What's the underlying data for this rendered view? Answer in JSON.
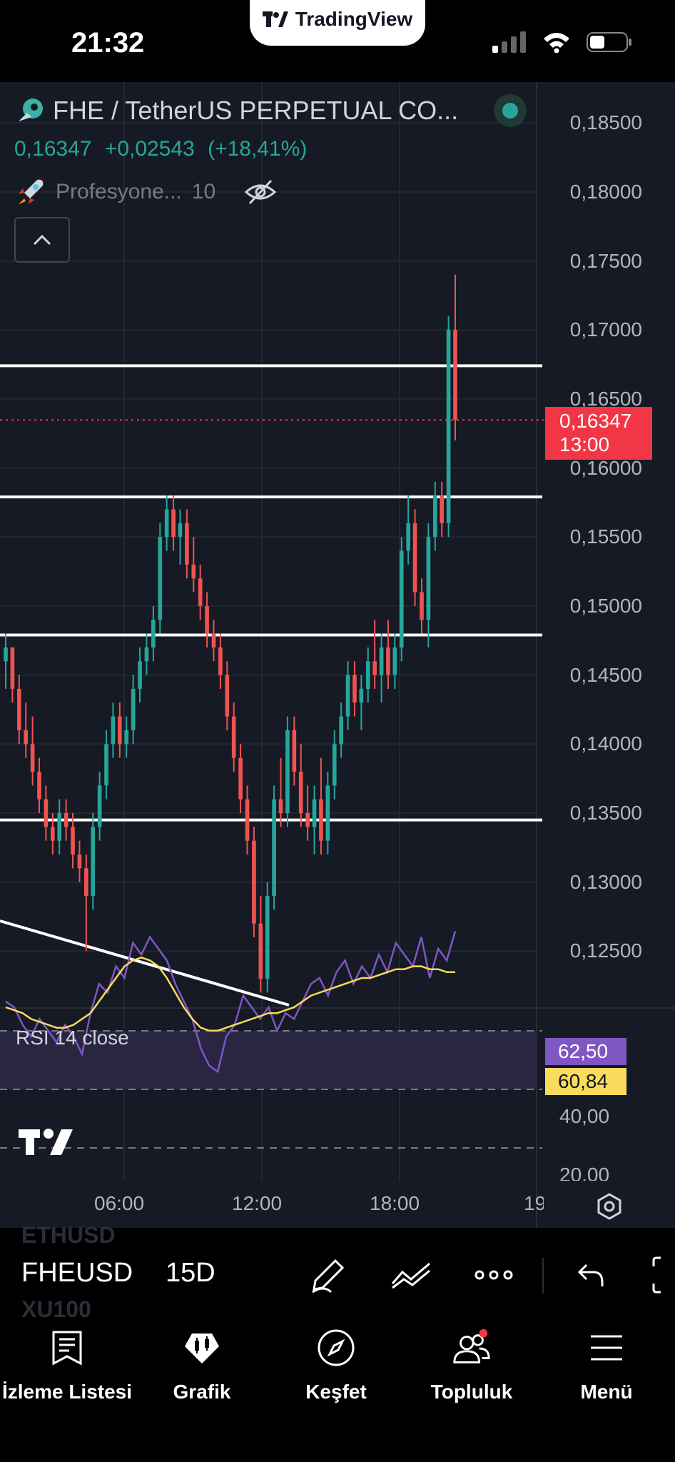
{
  "status_bar": {
    "time": "21:32",
    "brand": "TradingView"
  },
  "header": {
    "symbol_title": "FHE / TetherUS PERPETUAL CO...",
    "last_price": "0,16347",
    "change": "+0,02543",
    "change_pct": "(+18,41%)",
    "indicator_name": "Profesyone...",
    "indicator_param": "10"
  },
  "price_axis": [
    "0,18500",
    "0,18000",
    "0,17500",
    "0,17000",
    "0,16500",
    "0,16000",
    "0,15500",
    "0,15000",
    "0,14500",
    "0,14000",
    "0,13500",
    "0,13000",
    "0,12500"
  ],
  "price_tag": {
    "price": "0,16347",
    "countdown": "13:00"
  },
  "rsi": {
    "label": "RSI 14 close",
    "value": "62,50",
    "ma_value": "60,84",
    "axis": [
      "40,00",
      "20,00"
    ]
  },
  "time_axis": [
    "06:00",
    "12:00",
    "18:00",
    "19"
  ],
  "toolbar": {
    "symbol": "FHEUSD",
    "interval": "15D",
    "ghost_prev": "ETHUSD",
    "ghost_next": "XU100"
  },
  "nav": [
    {
      "label": "İzleme Listesi",
      "icon": "watchlist-icon"
    },
    {
      "label": "Grafik",
      "icon": "chart-icon"
    },
    {
      "label": "Keşfet",
      "icon": "compass-icon"
    },
    {
      "label": "Topluluk",
      "icon": "community-icon"
    },
    {
      "label": "Menü",
      "icon": "menu-icon"
    }
  ],
  "chart_data": {
    "type": "candlestick",
    "y_range": [
      0.121,
      0.1875
    ],
    "horizontal_levels": [
      0.1674,
      0.1579,
      0.1479,
      0.1345
    ],
    "trendline": {
      "from": [
        0,
        0.1262
      ],
      "to": [
        0.424,
        0.1206
      ]
    },
    "last_price_line": 0.16347,
    "colors": {
      "up": "#26a69a",
      "down": "#ef5350",
      "rsi_line": "#7e57c2",
      "rsi_ma": "#fbdb5c"
    },
    "candles": [
      [
        0.146,
        0.148,
        0.144,
        0.147
      ],
      [
        0.147,
        0.147,
        0.143,
        0.144
      ],
      [
        0.144,
        0.145,
        0.14,
        0.141
      ],
      [
        0.141,
        0.143,
        0.139,
        0.14
      ],
      [
        0.14,
        0.142,
        0.137,
        0.138
      ],
      [
        0.138,
        0.139,
        0.135,
        0.136
      ],
      [
        0.136,
        0.137,
        0.133,
        0.134
      ],
      [
        0.134,
        0.135,
        0.132,
        0.133
      ],
      [
        0.133,
        0.136,
        0.132,
        0.135
      ],
      [
        0.135,
        0.136,
        0.133,
        0.134
      ],
      [
        0.134,
        0.135,
        0.131,
        0.132
      ],
      [
        0.132,
        0.133,
        0.13,
        0.131
      ],
      [
        0.131,
        0.132,
        0.125,
        0.129
      ],
      [
        0.129,
        0.135,
        0.128,
        0.134
      ],
      [
        0.134,
        0.138,
        0.133,
        0.137
      ],
      [
        0.137,
        0.141,
        0.136,
        0.14
      ],
      [
        0.14,
        0.143,
        0.139,
        0.142
      ],
      [
        0.142,
        0.143,
        0.139,
        0.14
      ],
      [
        0.14,
        0.142,
        0.139,
        0.141
      ],
      [
        0.141,
        0.145,
        0.14,
        0.144
      ],
      [
        0.144,
        0.147,
        0.143,
        0.146
      ],
      [
        0.146,
        0.148,
        0.145,
        0.147
      ],
      [
        0.147,
        0.15,
        0.146,
        0.149
      ],
      [
        0.149,
        0.156,
        0.148,
        0.155
      ],
      [
        0.155,
        0.158,
        0.154,
        0.157
      ],
      [
        0.157,
        0.158,
        0.154,
        0.155
      ],
      [
        0.155,
        0.157,
        0.153,
        0.156
      ],
      [
        0.156,
        0.157,
        0.152,
        0.153
      ],
      [
        0.153,
        0.155,
        0.151,
        0.152
      ],
      [
        0.152,
        0.153,
        0.149,
        0.15
      ],
      [
        0.15,
        0.151,
        0.147,
        0.148
      ],
      [
        0.148,
        0.149,
        0.146,
        0.147
      ],
      [
        0.147,
        0.148,
        0.144,
        0.145
      ],
      [
        0.145,
        0.146,
        0.141,
        0.142
      ],
      [
        0.142,
        0.143,
        0.138,
        0.139
      ],
      [
        0.139,
        0.14,
        0.135,
        0.136
      ],
      [
        0.136,
        0.137,
        0.132,
        0.133
      ],
      [
        0.133,
        0.134,
        0.126,
        0.127
      ],
      [
        0.127,
        0.129,
        0.122,
        0.123
      ],
      [
        0.123,
        0.13,
        0.122,
        0.129
      ],
      [
        0.129,
        0.137,
        0.128,
        0.136
      ],
      [
        0.136,
        0.139,
        0.134,
        0.135
      ],
      [
        0.135,
        0.142,
        0.134,
        0.141
      ],
      [
        0.141,
        0.142,
        0.137,
        0.138
      ],
      [
        0.138,
        0.14,
        0.134,
        0.135
      ],
      [
        0.135,
        0.137,
        0.133,
        0.134
      ],
      [
        0.134,
        0.137,
        0.132,
        0.136
      ],
      [
        0.136,
        0.139,
        0.132,
        0.133
      ],
      [
        0.133,
        0.138,
        0.132,
        0.137
      ],
      [
        0.137,
        0.141,
        0.136,
        0.14
      ],
      [
        0.14,
        0.143,
        0.139,
        0.142
      ],
      [
        0.142,
        0.146,
        0.141,
        0.145
      ],
      [
        0.145,
        0.146,
        0.142,
        0.143
      ],
      [
        0.143,
        0.145,
        0.141,
        0.144
      ],
      [
        0.144,
        0.147,
        0.143,
        0.146
      ],
      [
        0.146,
        0.149,
        0.144,
        0.145
      ],
      [
        0.145,
        0.148,
        0.143,
        0.147
      ],
      [
        0.147,
        0.149,
        0.144,
        0.145
      ],
      [
        0.145,
        0.148,
        0.144,
        0.147
      ],
      [
        0.147,
        0.155,
        0.146,
        0.154
      ],
      [
        0.154,
        0.158,
        0.153,
        0.156
      ],
      [
        0.156,
        0.157,
        0.15,
        0.151
      ],
      [
        0.151,
        0.152,
        0.148,
        0.149
      ],
      [
        0.149,
        0.156,
        0.147,
        0.155
      ],
      [
        0.155,
        0.159,
        0.154,
        0.158
      ],
      [
        0.158,
        0.159,
        0.155,
        0.156
      ],
      [
        0.156,
        0.171,
        0.155,
        0.17
      ],
      [
        0.17,
        0.174,
        0.162,
        0.16347
      ]
    ]
  }
}
